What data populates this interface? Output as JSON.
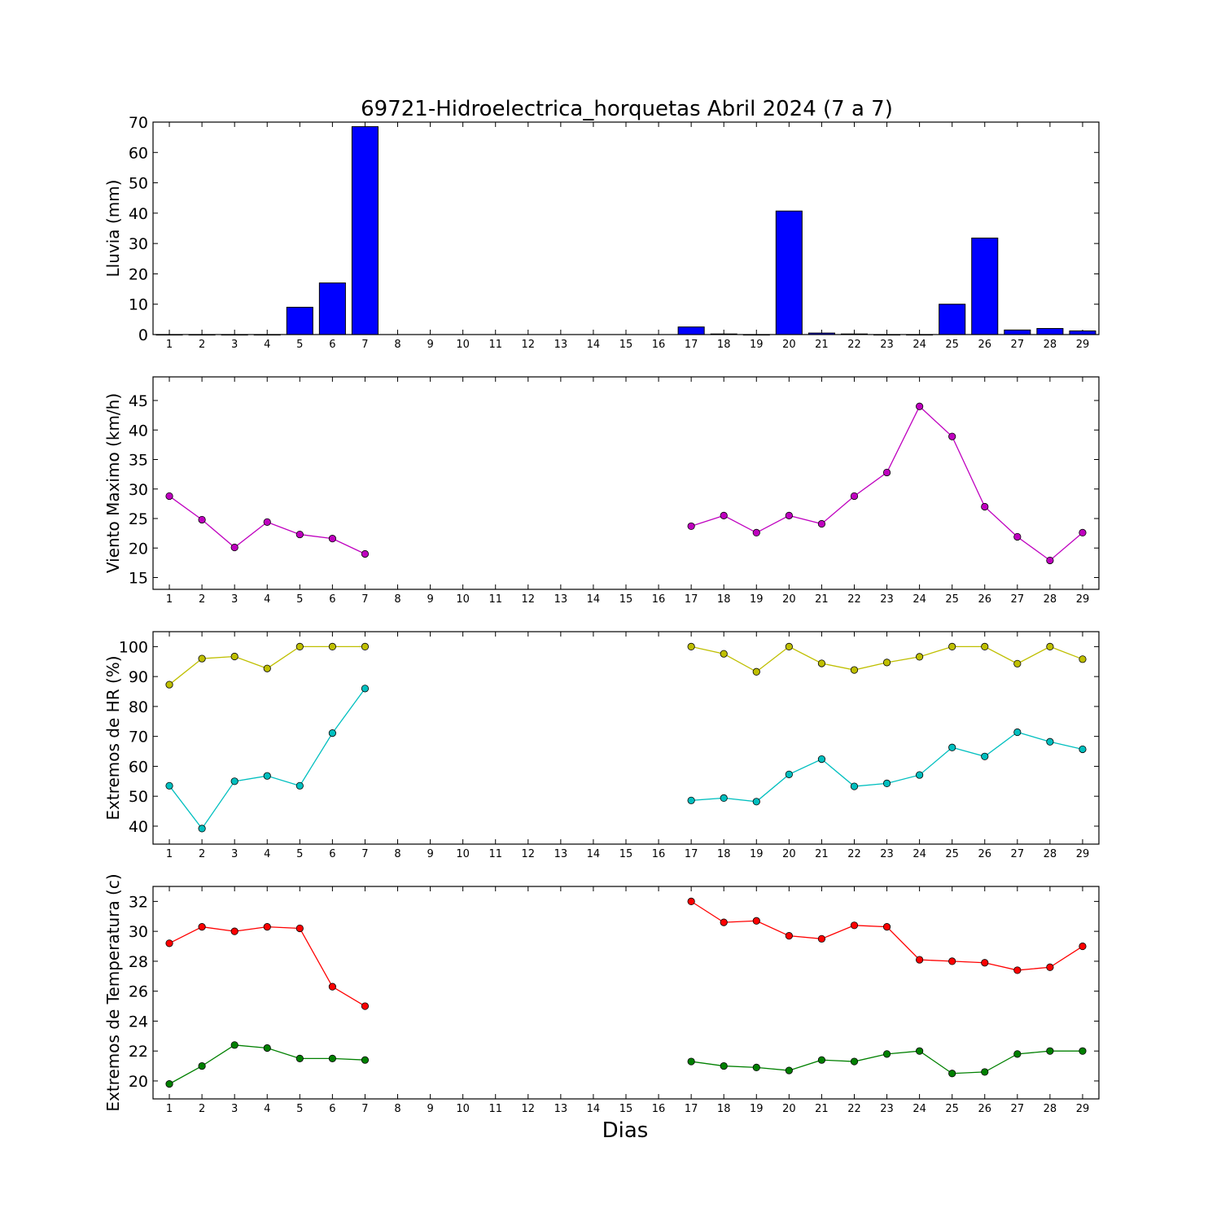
{
  "chart_data": [
    {
      "type": "bar",
      "title": "69721-Hidroelectrica_horquetas Abril 2024  (7 a 7)",
      "ylabel": "Lluvia (mm)",
      "ylim": [
        0,
        70
      ],
      "yticks": [
        0,
        10,
        20,
        30,
        40,
        50,
        60,
        70
      ],
      "categories": [
        1,
        2,
        3,
        4,
        5,
        6,
        7,
        8,
        9,
        10,
        11,
        12,
        13,
        14,
        15,
        16,
        17,
        18,
        19,
        20,
        21,
        22,
        23,
        24,
        25,
        26,
        27,
        28,
        29
      ],
      "values": [
        0,
        0,
        0,
        0,
        9,
        17,
        68.5,
        null,
        null,
        null,
        null,
        null,
        null,
        null,
        null,
        null,
        2.5,
        0.2,
        0,
        40.7,
        0.5,
        0.2,
        0,
        0,
        10,
        31.8,
        1.5,
        2,
        1.2
      ],
      "colors": {
        "bar": "#0000ff"
      }
    },
    {
      "type": "line",
      "ylabel": "Viento Maximo (km/h)",
      "ylim": [
        13,
        49
      ],
      "yticks": [
        15,
        20,
        25,
        30,
        35,
        40,
        45
      ],
      "x": [
        1,
        2,
        3,
        4,
        5,
        6,
        7,
        8,
        9,
        10,
        11,
        12,
        13,
        14,
        15,
        16,
        17,
        18,
        19,
        20,
        21,
        22,
        23,
        24,
        25,
        26,
        27,
        28,
        29
      ],
      "series": [
        {
          "color": "#bf00bf",
          "values": [
            28.8,
            24.8,
            20.1,
            24.4,
            22.3,
            21.6,
            19,
            null,
            null,
            null,
            null,
            null,
            null,
            null,
            null,
            null,
            23.7,
            25.5,
            22.6,
            25.5,
            24.1,
            28.8,
            32.8,
            44,
            38.9,
            27,
            21.9,
            17.9,
            22.6
          ]
        }
      ]
    },
    {
      "type": "line",
      "ylabel": "Extremos de HR (%)",
      "ylim": [
        34,
        105
      ],
      "yticks": [
        40,
        50,
        60,
        70,
        80,
        90,
        100
      ],
      "x": [
        1,
        2,
        3,
        4,
        5,
        6,
        7,
        8,
        9,
        10,
        11,
        12,
        13,
        14,
        15,
        16,
        17,
        18,
        19,
        20,
        21,
        22,
        23,
        24,
        25,
        26,
        27,
        28,
        29
      ],
      "series": [
        {
          "color": "#bfbf00",
          "values": [
            87.3,
            96,
            96.7,
            92.7,
            100,
            100,
            100,
            null,
            null,
            null,
            null,
            null,
            null,
            null,
            null,
            null,
            100,
            97.6,
            91.6,
            100,
            94.4,
            92.2,
            94.7,
            96.6,
            100,
            100,
            94.3,
            100,
            95.8
          ]
        },
        {
          "color": "#00bfbf",
          "values": [
            53.5,
            39.2,
            55,
            56.8,
            53.5,
            71.1,
            86,
            null,
            null,
            null,
            null,
            null,
            null,
            null,
            null,
            null,
            48.6,
            49.4,
            48.2,
            57.3,
            62.4,
            53.3,
            54.3,
            57.1,
            66.3,
            63.3,
            71.4,
            68.2,
            65.7
          ]
        }
      ]
    },
    {
      "type": "line",
      "ylabel": "Extremos de Temperatura (c)",
      "xlabel": "Dias",
      "ylim": [
        18.8,
        33
      ],
      "yticks": [
        20,
        22,
        24,
        26,
        28,
        30,
        32
      ],
      "x": [
        1,
        2,
        3,
        4,
        5,
        6,
        7,
        8,
        9,
        10,
        11,
        12,
        13,
        14,
        15,
        16,
        17,
        18,
        19,
        20,
        21,
        22,
        23,
        24,
        25,
        26,
        27,
        28,
        29
      ],
      "series": [
        {
          "color": "#ff0000",
          "values": [
            29.2,
            30.3,
            30,
            30.3,
            30.2,
            26.3,
            25,
            null,
            null,
            null,
            null,
            null,
            null,
            null,
            null,
            null,
            32,
            30.6,
            30.7,
            29.7,
            29.5,
            30.4,
            30.3,
            28.1,
            28,
            27.9,
            27.4,
            27.6,
            29
          ]
        },
        {
          "color": "#008000",
          "values": [
            19.8,
            21,
            22.4,
            22.2,
            21.5,
            21.5,
            21.4,
            null,
            null,
            null,
            null,
            null,
            null,
            null,
            null,
            null,
            21.3,
            21,
            20.9,
            20.7,
            21.4,
            21.3,
            21.8,
            22,
            20.5,
            20.6,
            21.8,
            22,
            22
          ]
        }
      ]
    }
  ]
}
